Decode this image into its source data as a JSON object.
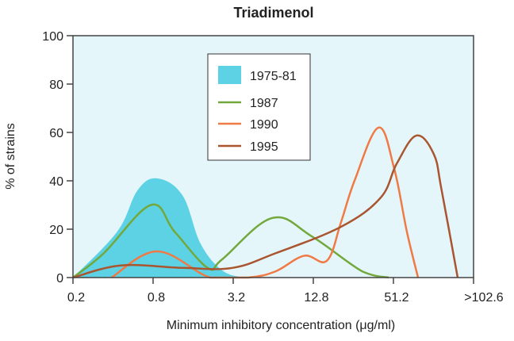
{
  "chart_data": {
    "type": "area",
    "title": "Triadimenol",
    "xlabel": "Minimum inhibitory concentration (μg/ml)",
    "ylabel": "% of strains",
    "x_scale": "log2",
    "xlim": [
      0.2,
      204.8
    ],
    "ylim": [
      0,
      100
    ],
    "x_ticks": [
      {
        "value": 0.2,
        "label": "0.2"
      },
      {
        "value": 0.8,
        "label": "0.8"
      },
      {
        "value": 3.2,
        "label": "3.2"
      },
      {
        "value": 12.8,
        "label": "12.8"
      },
      {
        "value": 51.2,
        "label": "51.2"
      },
      {
        "value": 204.8,
        "label": ">102.6"
      }
    ],
    "y_ticks": [
      "0",
      "20",
      "40",
      "60",
      "80",
      "100"
    ],
    "grid": false,
    "legend_position": "top-center",
    "background": "#e4f6fa",
    "series": [
      {
        "name": "1975-81",
        "style": "filled",
        "color": "#5dd2e5",
        "x": [
          0.2,
          0.43,
          0.61,
          0.86,
          1.33,
          1.82,
          2.64,
          3.82
        ],
        "y": [
          0,
          19,
          36,
          41,
          34,
          14,
          3,
          0
        ]
      },
      {
        "name": "1987",
        "style": "line",
        "color": "#72a83c",
        "x": [
          0.2,
          0.34,
          0.77,
          1.16,
          2.06,
          2.64,
          6.27,
          12.5,
          30,
          47.1
        ],
        "y": [
          0,
          10,
          30,
          19,
          4,
          7.5,
          24.6,
          17,
          2.5,
          0
        ]
      },
      {
        "name": "1990",
        "style": "line",
        "color": "#f07a45",
        "x": [
          0.39,
          0.86,
          2.15,
          4.15,
          6.62,
          10.9,
          16.2,
          20.7,
          26.1,
          39.5,
          51.9,
          64.6,
          78.4
        ],
        "y": [
          0,
          10.8,
          0,
          0,
          2.5,
          9,
          7,
          23,
          40,
          62,
          45,
          19,
          0
        ]
      },
      {
        "name": "1995",
        "style": "line",
        "color": "#a9552f",
        "x": [
          0.2,
          0.46,
          1.33,
          3.16,
          6.62,
          20.7,
          41,
          54.1,
          76.2,
          103,
          118,
          155.6
        ],
        "y": [
          0,
          5,
          4,
          4,
          10,
          21,
          33,
          47,
          58.7,
          51,
          36,
          0
        ]
      }
    ]
  }
}
